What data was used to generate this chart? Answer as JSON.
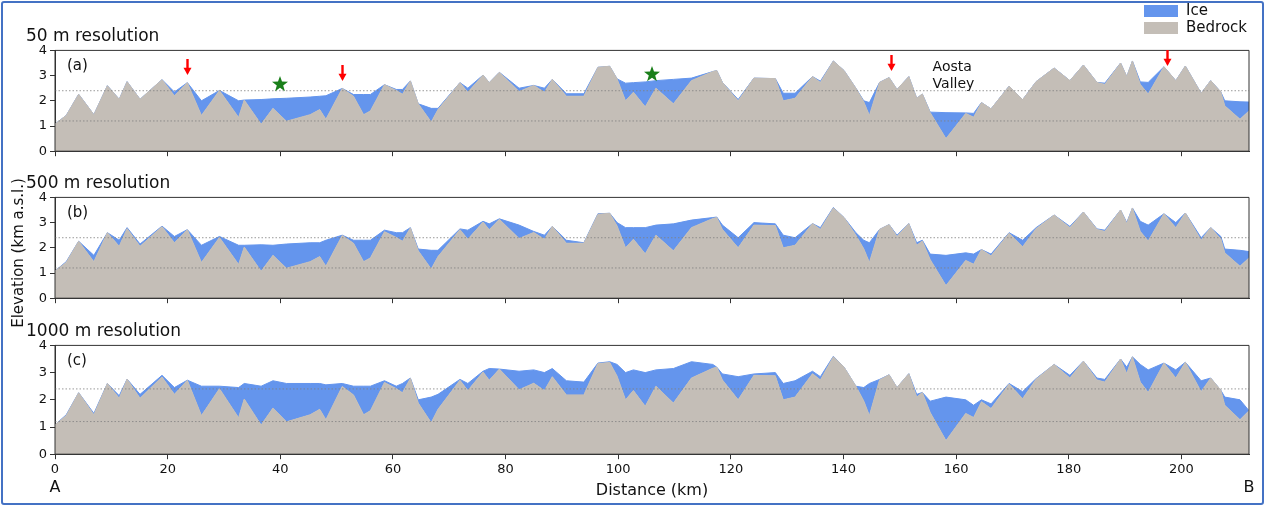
{
  "chart_data": [
    {
      "type": "area",
      "stacked": true,
      "title": "50 m resolution",
      "legend": "top right",
      "tick_labels": "y",
      "annotations": [
        "(a)",
        "Aosta Valley"
      ],
      "x": [
        0,
        2,
        4.2,
        6.9,
        9.3,
        11.4,
        12.8,
        15.1,
        19,
        21.2,
        23.5,
        26,
        29.2,
        32.6,
        33.6,
        36.6,
        38.7,
        41.1,
        45.3,
        47,
        48.1,
        51,
        53,
        54.8,
        56,
        58.5,
        60.6,
        61.7,
        63.1,
        64.5,
        66.8,
        68,
        71.9,
        73.3,
        76,
        77.1,
        78.9,
        82.4,
        85,
        86.9,
        88.3,
        90.8,
        93.9,
        96.4,
        98.5,
        99.8,
        101.3,
        102.7,
        104.8,
        106.7,
        109.8,
        113,
        116.8,
        117.5,
        118.5,
        121.3,
        124.1,
        127.9,
        129.3,
        131.4,
        134.5,
        135.9,
        138.2,
        140.1,
        142.2,
        143.6,
        144.6,
        146.4,
        148.1,
        149.5,
        151.6,
        153,
        154,
        155.4,
        158.2,
        161.7,
        163.1,
        164.5,
        166.2,
        169.4,
        171.8,
        174.2,
        177.4,
        180.2,
        182.6,
        185,
        186.4,
        189.2,
        190.3,
        191.3,
        192.7,
        194.1,
        196.9,
        199,
        200.7,
        203.5,
        205.2,
        207,
        207.7,
        210.4,
        212
      ],
      "series": [
        {
          "name": "Bedrock",
          "color": "#c4beb7",
          "values": [
            1.08,
            1.42,
            2.26,
            1.45,
            2.6,
            2.06,
            2.76,
            2.06,
            2.84,
            2.2,
            2.72,
            1.42,
            2.41,
            1.34,
            2.03,
            1.07,
            1.7,
            1.19,
            1.45,
            1.65,
            1.27,
            2.49,
            2.18,
            1.45,
            1.6,
            2.64,
            2.41,
            2.26,
            2.79,
            1.88,
            1.16,
            1.65,
            2.72,
            2.34,
            3.02,
            2.72,
            3.13,
            2.37,
            2.61,
            2.34,
            2.85,
            2.18,
            2.18,
            3.33,
            3.37,
            2.87,
            2.0,
            2.34,
            1.76,
            2.5,
            1.88,
            2.8,
            3.16,
            3.2,
            2.73,
            2.0,
            2.9,
            2.88,
            2.0,
            2.1,
            2.96,
            2.73,
            3.58,
            3.2,
            2.5,
            1.96,
            1.42,
            2.73,
            2.92,
            2.45,
            2.96,
            2.1,
            2.27,
            1.53,
            0.5,
            1.5,
            1.35,
            1.93,
            1.68,
            2.58,
            2.04,
            2.76,
            3.3,
            2.8,
            3.42,
            2.73,
            2.65,
            3.5,
            2.96,
            3.58,
            2.65,
            2.27,
            3.35,
            2.8,
            3.38,
            2.3,
            2.8,
            2.35,
            1.8,
            1.27,
            1.6
          ]
        },
        {
          "name": "Ice",
          "color": "#6495ed",
          "values": [
            0,
            0,
            0,
            0,
            0,
            0,
            0,
            0,
            0,
            0.15,
            0,
            0.58,
            0,
            0.66,
            0,
            0.98,
            0.38,
            0.91,
            0.7,
            0.53,
            0.93,
            0,
            0.07,
            0.8,
            0.65,
            0,
            0.04,
            0.19,
            0,
            0,
            0.54,
            0.05,
            0,
            0.16,
            0,
            0,
            0,
            0.13,
            0,
            0.16,
            0,
            0.1,
            0.1,
            0,
            0,
            0,
            0.7,
            0.38,
            0.99,
            0.3,
            0.97,
            0.1,
            0,
            0,
            0,
            0.05,
            0,
            0,
            0.3,
            0.2,
            0,
            0.05,
            0,
            0,
            0,
            0.04,
            0.51,
            0,
            0,
            0,
            0,
            0,
            0,
            0.02,
            1.03,
            0.02,
            0.15,
            0,
            0,
            0,
            0,
            0,
            0,
            0,
            0,
            0,
            0.05,
            0,
            0,
            0,
            0.1,
            0.46,
            0,
            0,
            0,
            0,
            0,
            0,
            0.2,
            0.69,
            0.35
          ]
        }
      ],
      "xlim": [
        0,
        212
      ],
      "xticks": [
        0,
        20,
        40,
        60,
        80,
        100,
        120,
        140,
        160,
        180,
        200
      ],
      "ylim": [
        0,
        4
      ],
      "yticks": [
        0,
        1,
        2,
        3,
        4
      ],
      "ref_lines": [
        {
          "axis": "y",
          "value": 2.4,
          "color": "#808080",
          "line_style": "dotted"
        },
        {
          "axis": "y",
          "value": 1.2,
          "color": "#808080",
          "line_style": "dotted"
        }
      ]
    },
    {
      "type": "area",
      "stacked": true,
      "title": "500 m resolution",
      "ylabel": "Elevation (km a.s.l.)",
      "tick_labels": "y",
      "annotations": [
        "(b)"
      ],
      "x": [
        0,
        2,
        4.2,
        6.9,
        9.3,
        11.4,
        12.8,
        15.1,
        19,
        21.2,
        23.5,
        26,
        29.2,
        32.6,
        33.6,
        36.6,
        38.7,
        41.1,
        45.3,
        47,
        48.1,
        51,
        53,
        54.8,
        56,
        58.5,
        60.6,
        61.7,
        63.1,
        64.5,
        66.8,
        68,
        71.9,
        73.3,
        76,
        77.1,
        78.9,
        82.4,
        85,
        86.9,
        88.3,
        90.8,
        93.9,
        96.4,
        98.5,
        99.8,
        101.3,
        102.7,
        104.8,
        106.7,
        109.8,
        113,
        116.8,
        117.5,
        118.5,
        121.3,
        124.1,
        127.9,
        129.3,
        131.4,
        134.5,
        135.9,
        138.2,
        140.1,
        142.2,
        143.6,
        144.6,
        146.4,
        148.1,
        149.5,
        151.6,
        153,
        154,
        155.4,
        158.2,
        161.7,
        163.1,
        164.5,
        166.2,
        169.4,
        171.8,
        174.2,
        177.4,
        180.2,
        182.6,
        185,
        186.4,
        189.2,
        190.3,
        191.3,
        192.7,
        194.1,
        196.9,
        199,
        200.7,
        203.5,
        205.2,
        207,
        207.7,
        210.4,
        212
      ],
      "series": [
        {
          "color": "#c4beb7",
          "values": [
            1.08,
            1.42,
            2.26,
            1.45,
            2.6,
            2.06,
            2.76,
            2.06,
            2.84,
            2.2,
            2.72,
            1.42,
            2.41,
            1.34,
            2.03,
            1.07,
            1.7,
            1.19,
            1.45,
            1.65,
            1.27,
            2.49,
            2.18,
            1.45,
            1.6,
            2.64,
            2.41,
            2.26,
            2.79,
            1.88,
            1.16,
            1.65,
            2.72,
            2.34,
            3.02,
            2.72,
            3.13,
            2.37,
            2.61,
            2.34,
            2.85,
            2.18,
            2.18,
            3.33,
            3.37,
            2.87,
            2.0,
            2.34,
            1.76,
            2.5,
            1.88,
            2.8,
            3.16,
            3.2,
            2.73,
            2.0,
            2.9,
            2.88,
            2.0,
            2.1,
            2.96,
            2.73,
            3.58,
            3.2,
            2.5,
            1.96,
            1.42,
            2.73,
            2.92,
            2.45,
            2.96,
            2.1,
            2.27,
            1.53,
            0.5,
            1.5,
            1.35,
            1.93,
            1.68,
            2.58,
            2.04,
            2.76,
            3.3,
            2.8,
            3.42,
            2.73,
            2.65,
            3.5,
            2.96,
            3.58,
            2.65,
            2.27,
            3.35,
            2.8,
            3.38,
            2.3,
            2.8,
            2.35,
            1.8,
            1.27,
            1.6
          ]
        },
        {
          "color": "#6495ed",
          "values": [
            0,
            0.03,
            0,
            0.25,
            0,
            0.24,
            0.04,
            0.09,
            0.02,
            0.25,
            0,
            0.68,
            0.04,
            0.76,
            0.07,
            1.05,
            0.4,
            0.96,
            0.75,
            0.55,
            1.03,
            0.01,
            0.12,
            0.85,
            0.7,
            0.06,
            0.19,
            0.34,
            0.01,
            0.07,
            0.74,
            0.25,
            0.03,
            0.36,
            0.03,
            0.23,
            0.02,
            0.53,
            0.04,
            0.16,
            0,
            0.12,
            0.02,
            0.02,
            0,
            0.13,
            0.8,
            0.46,
            1.04,
            0.4,
            1.07,
            0.3,
            0.04,
            0.02,
            0.17,
            0.4,
            0.1,
            0.07,
            0.5,
            0.3,
            0,
            0.07,
            0.02,
            0,
            0.1,
            0.34,
            0.78,
            0,
            0,
            0.05,
            0,
            0.1,
            0.03,
            0.22,
            1.2,
            0.3,
            0.4,
            0,
            0.07,
            0.02,
            0.26,
            0.04,
            0,
            0.05,
            0,
            0.02,
            0.05,
            0,
            0.04,
            0,
            0.4,
            0.63,
            0,
            0.2,
            0,
            0.1,
            0,
            0.1,
            0.15,
            0.63,
            0.25
          ]
        }
      ],
      "xlim": [
        0,
        212
      ],
      "xticks": [
        0,
        20,
        40,
        60,
        80,
        100,
        120,
        140,
        160,
        180,
        200
      ],
      "ylim": [
        0,
        4
      ],
      "yticks": [
        0,
        1,
        2,
        3,
        4
      ],
      "ref_lines": [
        {
          "axis": "y",
          "value": 2.4,
          "color": "#808080",
          "line_style": "dotted"
        },
        {
          "axis": "y",
          "value": 1.2,
          "color": "#808080",
          "line_style": "dotted"
        }
      ]
    },
    {
      "type": "area",
      "stacked": true,
      "title": "1000 m resolution",
      "xlabel": "Distance (km)",
      "annotations": [
        "(c)",
        "A",
        "B"
      ],
      "x": [
        0,
        2,
        4.2,
        6.9,
        9.3,
        11.4,
        12.8,
        15.1,
        19,
        21.2,
        23.5,
        26,
        29.2,
        32.6,
        33.6,
        36.6,
        38.7,
        41.1,
        45.3,
        47,
        48.1,
        51,
        53,
        54.8,
        56,
        58.5,
        60.6,
        61.7,
        63.1,
        64.5,
        66.8,
        68,
        71.9,
        73.3,
        76,
        77.1,
        78.9,
        82.4,
        85,
        86.9,
        88.3,
        90.8,
        93.9,
        96.4,
        98.5,
        99.8,
        101.3,
        102.7,
        104.8,
        106.7,
        109.8,
        113,
        116.8,
        117.5,
        118.5,
        121.3,
        124.1,
        127.9,
        129.3,
        131.4,
        134.5,
        135.9,
        138.2,
        140.1,
        142.2,
        143.6,
        144.6,
        146.4,
        148.1,
        149.5,
        151.6,
        153,
        154,
        155.4,
        158.2,
        161.7,
        163.1,
        164.5,
        166.2,
        169.4,
        171.8,
        174.2,
        177.4,
        180.2,
        182.6,
        185,
        186.4,
        189.2,
        190.3,
        191.3,
        192.7,
        194.1,
        196.9,
        199,
        200.7,
        203.5,
        205.2,
        207,
        207.7,
        210.4,
        212
      ],
      "series": [
        {
          "color": "#c4beb7",
          "values": [
            1.08,
            1.42,
            2.26,
            1.45,
            2.6,
            2.06,
            2.76,
            2.06,
            2.84,
            2.2,
            2.72,
            1.42,
            2.41,
            1.34,
            2.03,
            1.07,
            1.7,
            1.19,
            1.45,
            1.65,
            1.27,
            2.49,
            2.18,
            1.45,
            1.6,
            2.64,
            2.41,
            2.26,
            2.79,
            1.88,
            1.16,
            1.65,
            2.72,
            2.34,
            3.02,
            2.72,
            3.13,
            2.37,
            2.61,
            2.34,
            2.85,
            2.18,
            2.18,
            3.33,
            3.37,
            2.87,
            2.0,
            2.34,
            1.76,
            2.5,
            1.88,
            2.8,
            3.16,
            3.2,
            2.73,
            2.0,
            2.9,
            2.88,
            2.0,
            2.1,
            2.96,
            2.73,
            3.58,
            3.2,
            2.5,
            1.96,
            1.42,
            2.73,
            2.92,
            2.45,
            2.96,
            2.1,
            2.27,
            1.53,
            0.5,
            1.5,
            1.35,
            1.93,
            1.68,
            2.58,
            2.04,
            2.76,
            3.3,
            2.8,
            3.42,
            2.73,
            2.65,
            3.5,
            2.96,
            3.58,
            2.65,
            2.27,
            3.35,
            2.8,
            3.38,
            2.3,
            2.8,
            2.35,
            1.8,
            1.27,
            1.6
          ]
        },
        {
          "color": "#6495ed",
          "values": [
            0,
            0.03,
            0,
            0.05,
            0,
            0.09,
            0,
            0.14,
            0.06,
            0.25,
            0,
            1.08,
            0.09,
            1.11,
            0.57,
            1.43,
            1.0,
            1.41,
            1.15,
            0.95,
            1.28,
            0.11,
            0.32,
            1.05,
            0.9,
            0.06,
            0.09,
            0.34,
            0.01,
            0.12,
            0.94,
            0.55,
            0.03,
            0.26,
            0.03,
            0.43,
            0,
            0.68,
            0.49,
            0.66,
            0.3,
            0.52,
            0.47,
            0.02,
            0.03,
            0.43,
            1.0,
            0.76,
            1.24,
            0.6,
            1.27,
            0.6,
            0.14,
            0,
            0.22,
            0.85,
            0.05,
            0.12,
            0.6,
            0.6,
            0.09,
            0.12,
            0.02,
            0,
            0,
            0.49,
            1.18,
            0.02,
            0,
            0,
            0,
            0.1,
            0,
            0.42,
            1.6,
            0.5,
            0.45,
            0.07,
            0.17,
            0.02,
            0.26,
            0.02,
            0,
            0.1,
            0,
            0.07,
            0.1,
            0,
            0.24,
            0,
            0.65,
            0.83,
            0,
            0.3,
            0,
            0.4,
            0,
            0,
            0.3,
            0.73,
            0
          ]
        }
      ],
      "xlim": [
        0,
        212
      ],
      "xticks": [
        0,
        20,
        40,
        60,
        80,
        100,
        120,
        140,
        160,
        180,
        200
      ],
      "ylim": [
        0,
        4
      ],
      "yticks": [
        0,
        1,
        2,
        3,
        4
      ],
      "ref_lines": [
        {
          "axis": "y",
          "value": 2.4,
          "color": "#808080",
          "line_style": "dotted"
        },
        {
          "axis": "y",
          "value": 1.2,
          "color": "#808080",
          "line_style": "dotted"
        }
      ]
    }
  ]
}
